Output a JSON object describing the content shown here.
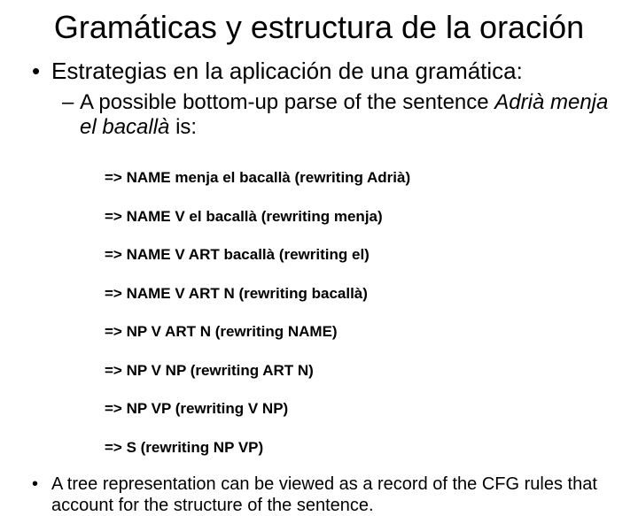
{
  "title": "Gramáticas y estructura de la oración",
  "bullet1": "Estrategias en la aplicación de una gramática:",
  "sub_prefix": "A possible bottom-up parse of the sentence ",
  "sub_italic": "Adrià menja el bacallà",
  "sub_suffix": " is:",
  "parse_lines": [
    "=> NAME menja el bacallà (rewriting Adrià)",
    "=> NAME V el bacallà (rewriting menja)",
    "=> NAME V ART bacallà (rewriting el)",
    "=> NAME V ART N (rewriting bacallà)",
    "=> NP V ART N (rewriting NAME)",
    "=> NP V NP (rewriting ART N)",
    "=> NP VP (rewriting V NP)",
    "=> S (rewriting NP VP)"
  ],
  "bullet2": "A tree representation can be viewed as a record of the CFG rules that account for the structure of the sentence."
}
